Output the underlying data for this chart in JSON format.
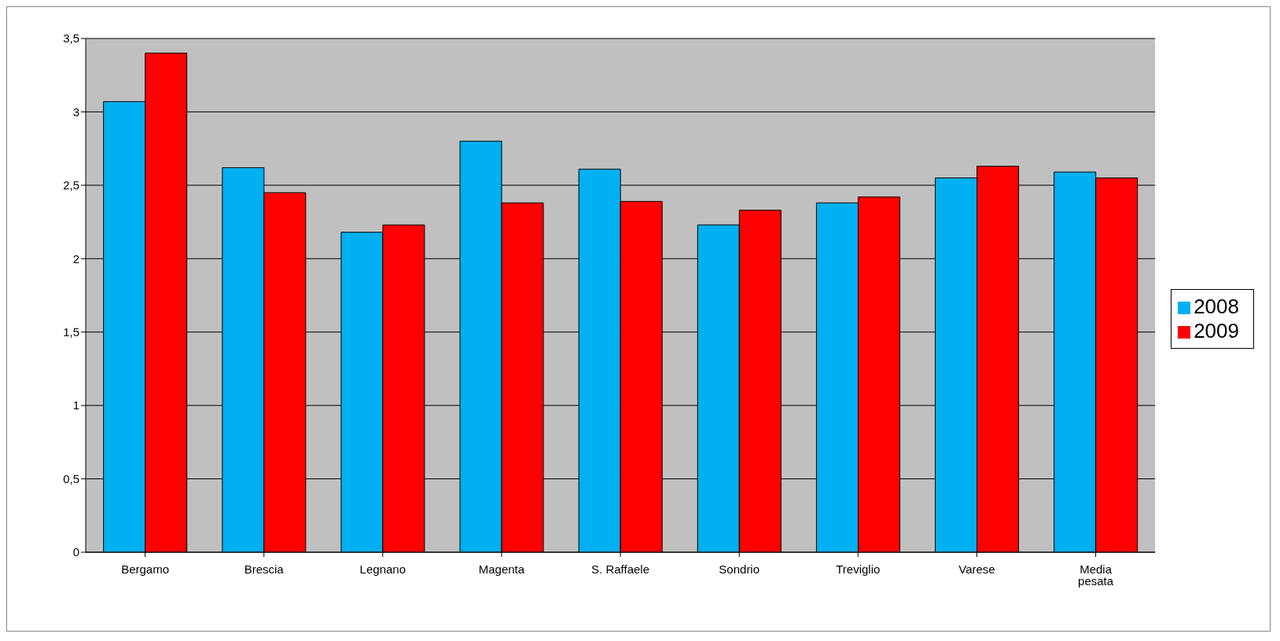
{
  "chart_data": {
    "type": "bar",
    "categories": [
      "Bergamo",
      "Brescia",
      "Legnano",
      "Magenta",
      "S. Raffaele",
      "Sondrio",
      "Treviglio",
      "Varese",
      "Media pesata"
    ],
    "series": [
      {
        "name": "2008",
        "color": "#00b0f0",
        "values": [
          3.07,
          2.62,
          2.18,
          2.8,
          2.61,
          2.23,
          2.38,
          2.55,
          2.59
        ]
      },
      {
        "name": "2009",
        "color": "#ff0000",
        "values": [
          3.4,
          2.45,
          2.23,
          2.38,
          2.39,
          2.33,
          2.42,
          2.63,
          2.55
        ]
      }
    ],
    "ylim": [
      0,
      3.5
    ],
    "yticks": [
      0,
      {
        "value": 0.5,
        "label": "0,5"
      },
      1,
      {
        "value": 1.5,
        "label": "1,5"
      },
      2,
      {
        "value": 2.5,
        "label": "2,5"
      },
      3,
      {
        "value": 3.5,
        "label": "3,5"
      }
    ],
    "grid": "y",
    "legend": "right"
  }
}
